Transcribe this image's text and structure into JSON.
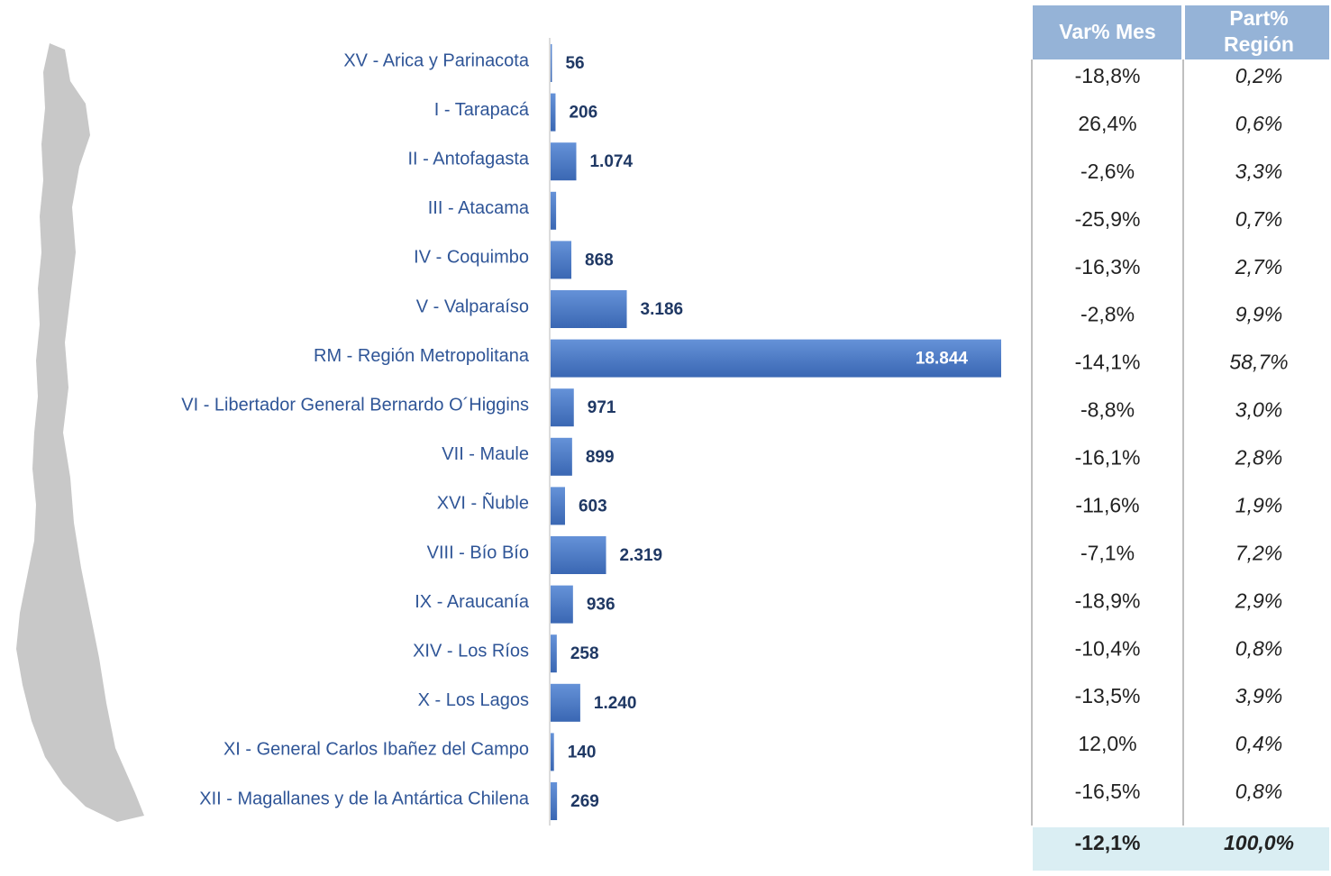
{
  "chart_data": {
    "type": "bar",
    "orientation": "horizontal",
    "color": "#4a7bc8",
    "categories": [
      "XV - Arica y Parinacota",
      "I - Tarapacá",
      "II  - Antofagasta",
      "III  - Atacama",
      "IV - Coquimbo",
      "V  - Valparaíso",
      "RM  - Región Metropolitana",
      "VI  - Libertador General Bernardo O´Higgins",
      "VII - Maule",
      "XVI - Ñuble",
      "VIII - Bío Bío",
      "IX - Araucanía",
      "XIV  - Los Ríos",
      "X - Los Lagos",
      "XI - General Carlos Ibañez del Campo",
      "XII  - Magallanes y de la Antártica Chilena"
    ],
    "values": [
      56,
      206,
      1074,
      230,
      868,
      3186,
      18844,
      971,
      899,
      603,
      2319,
      936,
      258,
      1240,
      140,
      269
    ],
    "value_labels": [
      "56",
      "206",
      "1.074",
      null,
      "868",
      "3.186",
      "18.844",
      "971",
      "899",
      "603",
      "2.319",
      "936",
      "258",
      "1.240",
      "140",
      "269"
    ]
  },
  "table": {
    "columns": [
      "Var% Mes",
      [
        "Part%",
        "Región"
      ]
    ],
    "rows": [
      [
        "-18,8%",
        "0,2%"
      ],
      [
        "26,4%",
        "0,6%"
      ],
      [
        "-2,6%",
        "3,3%"
      ],
      [
        "-25,9%",
        "0,7%"
      ],
      [
        "-16,3%",
        "2,7%"
      ],
      [
        "-2,8%",
        "9,9%"
      ],
      [
        "-14,1%",
        "58,7%"
      ],
      [
        "-8,8%",
        "3,0%"
      ],
      [
        "-16,1%",
        "2,8%"
      ],
      [
        "-11,6%",
        "1,9%"
      ],
      [
        "-7,1%",
        "7,2%"
      ],
      [
        "-18,9%",
        "2,9%"
      ],
      [
        "-10,4%",
        "0,8%"
      ],
      [
        "-13,5%",
        "3,9%"
      ],
      [
        "12,0%",
        "0,4%"
      ],
      [
        "-16,5%",
        "0,8%"
      ]
    ],
    "total": [
      "-12,1%",
      "100,0%"
    ]
  }
}
